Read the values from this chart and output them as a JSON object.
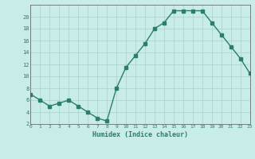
{
  "x": [
    0,
    1,
    2,
    3,
    4,
    5,
    6,
    7,
    8,
    9,
    10,
    11,
    12,
    13,
    14,
    15,
    16,
    17,
    18,
    19,
    20,
    21,
    22,
    23
  ],
  "y": [
    7,
    6,
    5,
    5.5,
    6,
    5,
    4,
    3,
    2.5,
    8,
    11.5,
    13.5,
    15.5,
    18,
    19,
    21,
    21,
    21,
    21,
    19,
    17,
    15,
    13,
    10.5
  ],
  "xlabel": "Humidex (Indice chaleur)",
  "ylim": [
    2,
    22
  ],
  "xlim": [
    0,
    23
  ],
  "yticks": [
    2,
    4,
    6,
    8,
    10,
    12,
    14,
    16,
    18,
    20
  ],
  "xticks": [
    0,
    1,
    2,
    3,
    4,
    5,
    6,
    7,
    8,
    9,
    10,
    11,
    12,
    13,
    14,
    15,
    16,
    17,
    18,
    19,
    20,
    21,
    22,
    23
  ],
  "line_color": "#2d7d6e",
  "bg_color": "#c8ece8",
  "grid_color": "#b0d4d0",
  "marker": "s",
  "marker_size": 2.5
}
